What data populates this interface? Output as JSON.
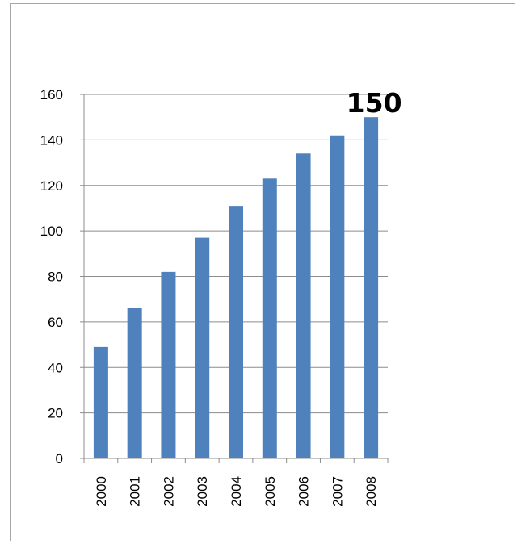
{
  "chart_data": {
    "type": "bar",
    "categories": [
      "2000",
      "2001",
      "2002",
      "2003",
      "2004",
      "2005",
      "2006",
      "2007",
      "2008"
    ],
    "values": [
      49,
      66,
      82,
      97,
      111,
      123,
      134,
      142,
      150
    ],
    "title": "",
    "xlabel": "",
    "ylabel": "",
    "ylim": [
      0,
      160
    ],
    "yticks": [
      0,
      20,
      40,
      60,
      80,
      100,
      120,
      140,
      160
    ],
    "grid": true,
    "legend": "none",
    "annotations": [
      {
        "category": "2008",
        "text": "150"
      }
    ],
    "colors": {
      "bar": "#4f81bd",
      "grid": "#8c8c8c",
      "axis": "#8c8c8c"
    }
  }
}
